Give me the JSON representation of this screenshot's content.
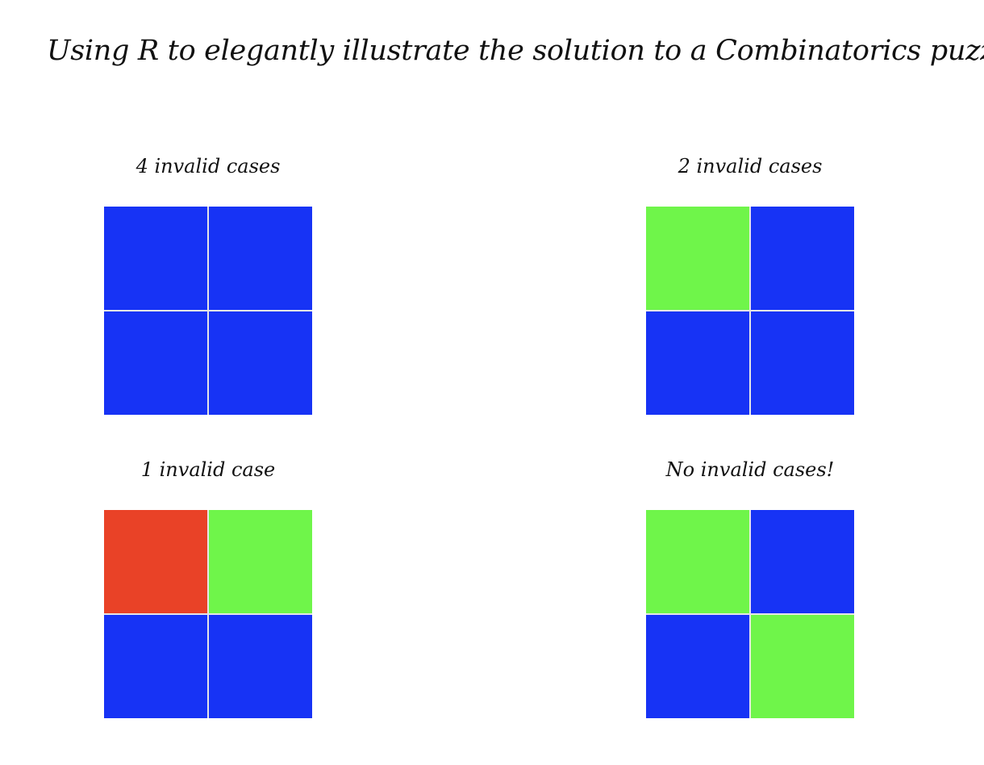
{
  "title": "Using R to elegantly illustrate the solution to a Combinatorics puzzle",
  "colors": {
    "blue": "#1733f5",
    "green": "#6ff54a",
    "red": "#e94227",
    "background": "#ffffff"
  },
  "panels": [
    {
      "label": "4 invalid cases",
      "cells": [
        "blue",
        "blue",
        "blue",
        "blue"
      ]
    },
    {
      "label": "2 invalid cases",
      "cells": [
        "green",
        "blue",
        "blue",
        "blue"
      ]
    },
    {
      "label": "1 invalid case",
      "cells": [
        "red",
        "green",
        "blue",
        "blue"
      ]
    },
    {
      "label": "No invalid cases!",
      "cells": [
        "green",
        "blue",
        "blue",
        "green"
      ]
    }
  ]
}
